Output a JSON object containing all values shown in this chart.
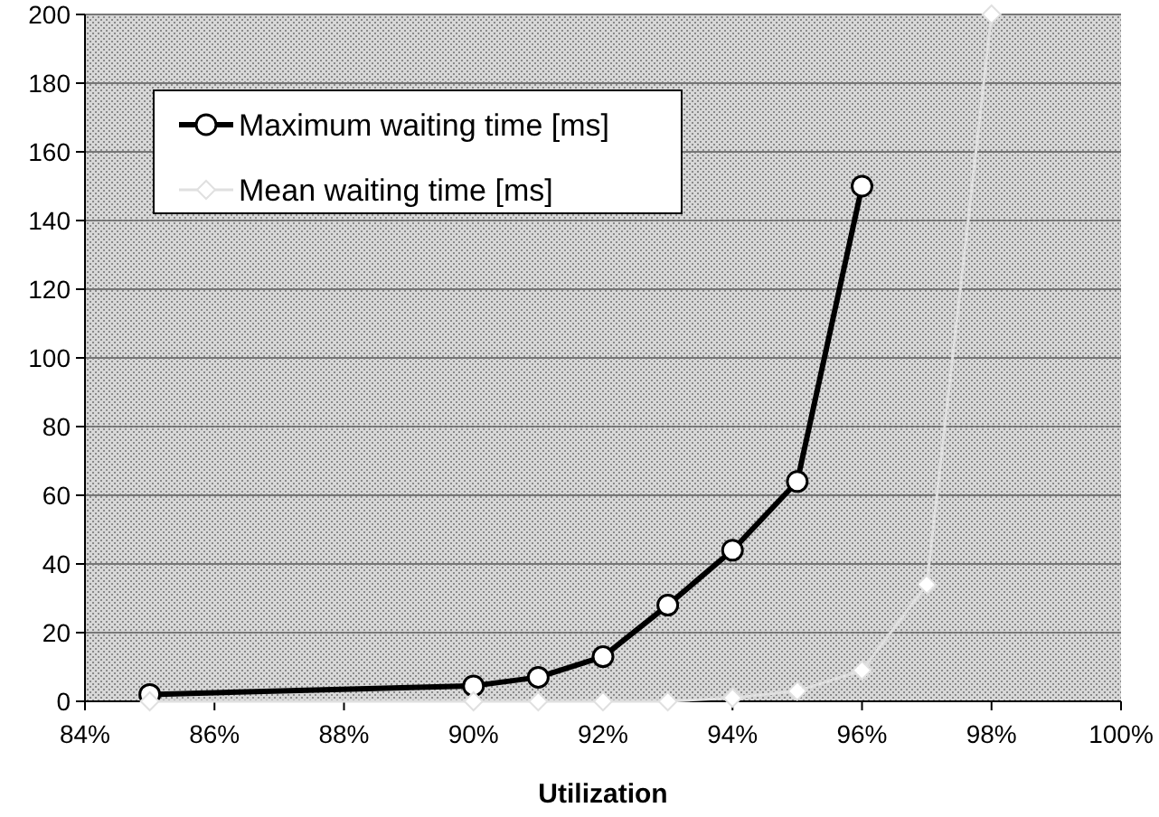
{
  "chart_data": {
    "type": "line",
    "xlabel": "Utilization",
    "x": [
      85,
      90,
      91,
      92,
      93,
      94,
      95,
      96,
      97,
      98
    ],
    "series": [
      {
        "name": "Maximum waiting time [ms]",
        "color": "#000000",
        "marker": "circle",
        "values": [
          2,
          4.5,
          7,
          13,
          28,
          44,
          64,
          150,
          null,
          null
        ]
      },
      {
        "name": "Mean waiting time [ms]",
        "color": "#e0e0e0",
        "marker": "diamond",
        "values": [
          0,
          0,
          0,
          0,
          0,
          1,
          3,
          9,
          34,
          200
        ]
      }
    ],
    "xlim": [
      84,
      100
    ],
    "xticks": [
      {
        "value": 84,
        "label": "84%"
      },
      {
        "value": 86,
        "label": "86%"
      },
      {
        "value": 88,
        "label": "88%"
      },
      {
        "value": 90,
        "label": "90%"
      },
      {
        "value": 92,
        "label": "92%"
      },
      {
        "value": 94,
        "label": "94%"
      },
      {
        "value": 96,
        "label": "96%"
      },
      {
        "value": 98,
        "label": "98%"
      },
      {
        "value": 100,
        "label": "100%"
      }
    ],
    "ylim": [
      0,
      200
    ],
    "yticks": [
      0,
      20,
      40,
      60,
      80,
      100,
      120,
      140,
      160,
      180,
      200
    ],
    "grid": "y",
    "legend": "top left"
  }
}
